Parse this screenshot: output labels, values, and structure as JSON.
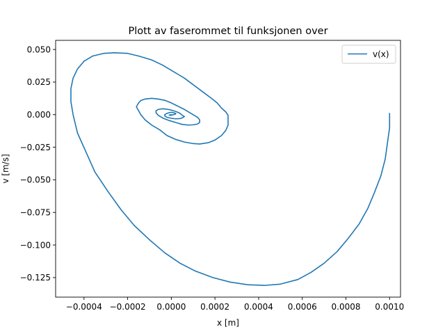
{
  "chart_data": {
    "type": "line",
    "title": "Plott av faserommet til funksjonen over",
    "xlabel": "x [m]",
    "ylabel": "v [m/s]",
    "xlim": [
      -0.00053,
      0.00105
    ],
    "ylim": [
      -0.14,
      0.057
    ],
    "grid": false,
    "legend_position": "top-right",
    "series_color": "#1f77b4",
    "xticks": [
      {
        "value": -0.0004,
        "label": "−0.0004"
      },
      {
        "value": -0.0002,
        "label": "−0.0002"
      },
      {
        "value": 0.0,
        "label": "0.0000"
      },
      {
        "value": 0.0002,
        "label": "0.0002"
      },
      {
        "value": 0.0004,
        "label": "0.0004"
      },
      {
        "value": 0.0006,
        "label": "0.0006"
      },
      {
        "value": 0.0008,
        "label": "0.0008"
      },
      {
        "value": 0.001,
        "label": "0.0010"
      }
    ],
    "yticks": [
      {
        "value": 0.05,
        "label": "0.050"
      },
      {
        "value": 0.025,
        "label": "0.025"
      },
      {
        "value": 0.0,
        "label": "0.000"
      },
      {
        "value": -0.025,
        "label": "−0.025"
      },
      {
        "value": -0.05,
        "label": "−0.050"
      },
      {
        "value": -0.075,
        "label": "−0.075"
      },
      {
        "value": -0.1,
        "label": "−0.100"
      },
      {
        "value": -0.125,
        "label": "−0.125"
      }
    ],
    "series": [
      {
        "name": "v(x)",
        "x": [
          0.001,
          0.001,
          0.00099,
          0.00098,
          0.00096,
          0.00093,
          0.0009,
          0.00086,
          0.00081,
          0.00076,
          0.0007,
          0.00064,
          0.00058,
          0.0005,
          0.00043,
          0.00035,
          0.00027,
          0.00019,
          0.00011,
          4e-05,
          -3e-05,
          -0.0001,
          -0.00017,
          -0.00023,
          -0.00029,
          -0.00035,
          -0.00039,
          -0.00043,
          -0.00045,
          -0.00046,
          -0.00046,
          -0.00045,
          -0.00043,
          -0.0004,
          -0.00036,
          -0.00031,
          -0.00026,
          -0.0002,
          -0.00015,
          -9e-05,
          -4e-05,
          1e-05,
          6e-05,
          0.0001,
          0.00014,
          0.00018,
          0.00021,
          0.00023,
          0.00025,
          0.00026,
          0.00026,
          0.00026,
          0.00025,
          0.00023,
          0.0002,
          0.00017,
          0.00013,
          0.0001,
          6e-05,
          2e-05,
          -2e-05,
          -5e-05,
          -9e-05,
          -0.00012,
          -0.00014,
          -0.00015,
          -0.00016,
          -0.00015,
          -0.00014,
          -0.00012,
          -9e-05,
          -6e-05,
          -3e-05,
          0.0,
          3e-05,
          6e-05,
          8e-05,
          0.0001,
          0.00012,
          0.00013,
          0.00013,
          0.00012,
          0.0001,
          8e-05,
          5e-05,
          2e-05,
          -1e-05,
          -4e-05,
          -6e-05,
          -7e-05,
          -7e-05,
          -6e-05,
          -4e-05,
          -2e-05,
          0.0,
          2e-05,
          4e-05,
          5e-05,
          6e-05,
          5e-05,
          4e-05,
          2e-05,
          0.0,
          -2e-05,
          -3e-05,
          -3e-05,
          -2e-05,
          -1e-05,
          0.0,
          1e-05,
          2e-05,
          2e-05,
          1e-05,
          0.0,
          -1e-05,
          0.0
        ],
        "y": [
          0.001,
          -0.01,
          -0.022,
          -0.034,
          -0.047,
          -0.06,
          -0.072,
          -0.084,
          -0.095,
          -0.105,
          -0.114,
          -0.121,
          -0.1265,
          -0.13,
          -0.131,
          -0.1305,
          -0.1285,
          -0.125,
          -0.12,
          -0.114,
          -0.106,
          -0.096,
          -0.085,
          -0.073,
          -0.059,
          -0.044,
          -0.029,
          -0.014,
          0.0,
          0.01,
          0.02,
          0.028,
          0.035,
          0.041,
          0.045,
          0.047,
          0.0475,
          0.047,
          0.045,
          0.042,
          0.038,
          0.033,
          0.028,
          0.023,
          0.018,
          0.013,
          0.009,
          0.005,
          0.002,
          -0.0005,
          -0.004,
          -0.008,
          -0.012,
          -0.016,
          -0.0195,
          -0.0215,
          -0.0225,
          -0.0222,
          -0.021,
          -0.019,
          -0.016,
          -0.012,
          -0.008,
          -0.004,
          0.0,
          0.003,
          0.006,
          0.009,
          0.0108,
          0.012,
          0.0125,
          0.012,
          0.011,
          0.009,
          0.0065,
          0.004,
          0.002,
          0.0,
          -0.002,
          -0.004,
          -0.006,
          -0.0072,
          -0.0078,
          -0.008,
          -0.0075,
          -0.006,
          -0.0045,
          -0.0025,
          -0.0005,
          0.0015,
          0.003,
          0.004,
          0.0045,
          0.0042,
          0.0035,
          0.0025,
          0.001,
          -0.0005,
          -0.0015,
          -0.0025,
          -0.003,
          -0.0032,
          -0.0028,
          -0.002,
          -0.001,
          0.0,
          0.001,
          0.0015,
          0.0018,
          0.0015,
          0.001,
          0.0005,
          0.0,
          -0.0005,
          -0.0003,
          0.0
        ]
      }
    ]
  }
}
